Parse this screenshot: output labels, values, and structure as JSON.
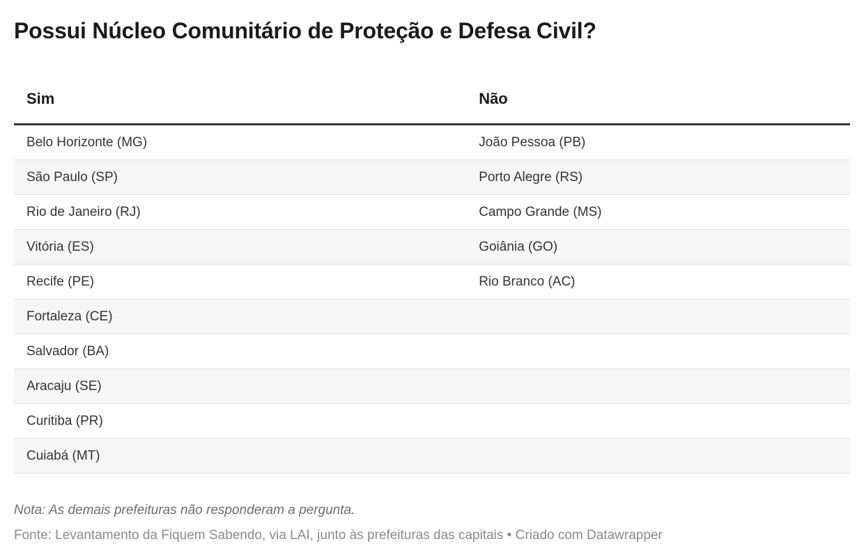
{
  "chart_data": {
    "type": "table",
    "title": "Possui Núcleo Comunitário de Proteção e Defesa Civil?",
    "columns": [
      "Sim",
      "Não"
    ],
    "rows": [
      [
        "Belo Horizonte (MG)",
        "João Pessoa (PB)"
      ],
      [
        "São Paulo (SP)",
        "Porto Alegre (RS)"
      ],
      [
        "Rio de Janeiro (RJ)",
        "Campo Grande (MS)"
      ],
      [
        "Vitória (ES)",
        "Goiânia (GO)"
      ],
      [
        "Recife (PE)",
        "Rio Branco (AC)"
      ],
      [
        "Fortaleza (CE)",
        ""
      ],
      [
        "Salvador (BA)",
        ""
      ],
      [
        "Aracaju (SE)",
        ""
      ],
      [
        "Curitiba (PR)",
        ""
      ],
      [
        "Cuiabá (MT)",
        ""
      ]
    ],
    "layout_hints": {
      "striped_rows": true,
      "stripe_on": "even",
      "header_rule": "3px solid",
      "legend": "none",
      "grid": "row-dividers-only"
    }
  },
  "notes": {
    "text": "Nota: As demais prefeituras não responderam a pergunta."
  },
  "byline": {
    "label": "Fonte:",
    "source": "Levantamento da Fiquem Sabendo, via LAI, junto às prefeituras das capitais",
    "separator": "•",
    "credit": "Criado com Datawrapper"
  },
  "colors": {
    "title_text": "#1a1a1a",
    "row_text": "#333333",
    "stripe": "#f6f6f6",
    "row_divider": "#e3e3e3",
    "header_rule": "#333333",
    "notes_text": "#6d6d6d",
    "byline_text": "#8a8a8a"
  }
}
